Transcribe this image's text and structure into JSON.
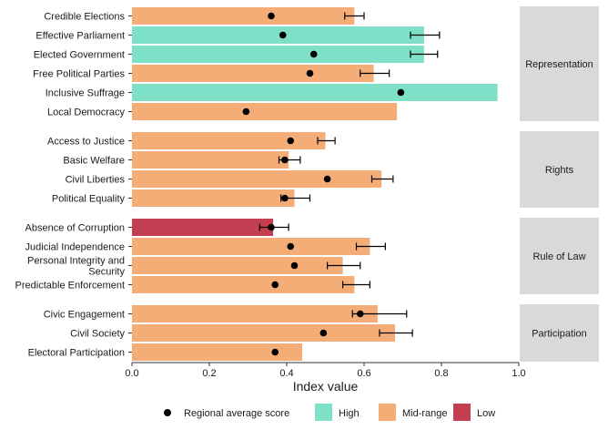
{
  "chart_data": {
    "type": "bar",
    "orientation": "horizontal",
    "xlabel": "Index value",
    "xlim": [
      0,
      1
    ],
    "xticks": [
      "0.0",
      "0.2",
      "0.4",
      "0.6",
      "0.8",
      "1.0"
    ],
    "grid": false,
    "legend_position": "bottom",
    "legend": {
      "marker_label": "Regional average score",
      "items": [
        {
          "key": "High",
          "label": "High",
          "color": "#7fe0c8"
        },
        {
          "key": "Mid-range",
          "label": "Mid-range",
          "color": "#f5ad78"
        },
        {
          "key": "Low",
          "label": "Low",
          "color": "#c43e52"
        }
      ]
    },
    "panels": [
      {
        "name": "Representation",
        "rows": [
          {
            "label": "Credible Elections",
            "value": 0.575,
            "category": "Mid-range",
            "regional_avg": 0.36,
            "err_low": 0.55,
            "err_high": 0.6
          },
          {
            "label": "Effective Parliament",
            "value": 0.755,
            "category": "High",
            "regional_avg": 0.39,
            "err_low": 0.72,
            "err_high": 0.795
          },
          {
            "label": "Elected Government",
            "value": 0.755,
            "category": "High",
            "regional_avg": 0.47,
            "err_low": 0.72,
            "err_high": 0.79
          },
          {
            "label": "Free Political Parties",
            "value": 0.625,
            "category": "Mid-range",
            "regional_avg": 0.46,
            "err_low": 0.59,
            "err_high": 0.665
          },
          {
            "label": "Inclusive Suffrage",
            "value": 0.945,
            "category": "High",
            "regional_avg": 0.695,
            "err_low": null,
            "err_high": null
          },
          {
            "label": "Local Democracy",
            "value": 0.685,
            "category": "Mid-range",
            "regional_avg": 0.295,
            "err_low": null,
            "err_high": null
          }
        ]
      },
      {
        "name": "Rights",
        "rows": [
          {
            "label": "Access to Justice",
            "value": 0.5,
            "category": "Mid-range",
            "regional_avg": 0.41,
            "err_low": 0.48,
            "err_high": 0.525
          },
          {
            "label": "Basic Welfare",
            "value": 0.405,
            "category": "Mid-range",
            "regional_avg": 0.395,
            "err_low": 0.38,
            "err_high": 0.435
          },
          {
            "label": "Civil Liberties",
            "value": 0.645,
            "category": "Mid-range",
            "regional_avg": 0.505,
            "err_low": 0.62,
            "err_high": 0.675
          },
          {
            "label": "Political Equality",
            "value": 0.42,
            "category": "Mid-range",
            "regional_avg": 0.395,
            "err_low": 0.385,
            "err_high": 0.46
          }
        ]
      },
      {
        "name": "Rule of Law",
        "rows": [
          {
            "label": "Absence of Corruption",
            "value": 0.365,
            "category": "Low",
            "regional_avg": 0.36,
            "err_low": 0.33,
            "err_high": 0.405
          },
          {
            "label": "Judicial Independence",
            "value": 0.615,
            "category": "Mid-range",
            "regional_avg": 0.41,
            "err_low": 0.58,
            "err_high": 0.655
          },
          {
            "label": "Personal Integrity and Security",
            "label_lines": [
              "Personal Integrity and",
              "Security"
            ],
            "value": 0.545,
            "category": "Mid-range",
            "regional_avg": 0.42,
            "err_low": 0.505,
            "err_high": 0.59
          },
          {
            "label": "Predictable Enforcement",
            "value": 0.575,
            "category": "Mid-range",
            "regional_avg": 0.37,
            "err_low": 0.545,
            "err_high": 0.615
          }
        ]
      },
      {
        "name": "Participation",
        "rows": [
          {
            "label": "Civic Engagement",
            "value": 0.635,
            "category": "Mid-range",
            "regional_avg": 0.59,
            "err_low": 0.57,
            "err_high": 0.71
          },
          {
            "label": "Civil Society",
            "value": 0.68,
            "category": "Mid-range",
            "regional_avg": 0.495,
            "err_low": 0.64,
            "err_high": 0.725
          },
          {
            "label": "Electoral Participation",
            "value": 0.44,
            "category": "Mid-range",
            "regional_avg": 0.37,
            "err_low": null,
            "err_high": null
          }
        ]
      }
    ]
  }
}
